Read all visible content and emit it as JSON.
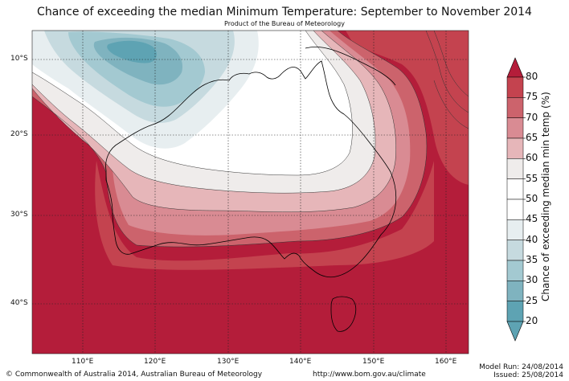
{
  "title": "Chance of exceeding the median Minimum Temperature: September to November 2014",
  "subtitle": "Product of the Bureau of Meteorology",
  "latitude_labels": [
    "10°S",
    "20°S",
    "30°S",
    "40°S"
  ],
  "longitude_labels": [
    "110°E",
    "120°E",
    "130°E",
    "140°E",
    "150°E",
    "160°E"
  ],
  "colorbar": {
    "title": "Chance of exceeding median min temp (%)",
    "ticks": [
      "80",
      "75",
      "70",
      "65",
      "60",
      "55",
      "50",
      "45",
      "40",
      "35",
      "30",
      "25",
      "20"
    ],
    "colors": [
      "#b41d3a",
      "#c4434f",
      "#cc636c",
      "#d98b93",
      "#e6b6b9",
      "#efeceb",
      "#ffffff",
      "#ffffff",
      "#e7eef0",
      "#c6dadf",
      "#a3c9d1",
      "#7fb3bf",
      "#5ea3b3"
    ]
  },
  "footer": {
    "copyright": "© Commonwealth of Australia 2014, Australian Bureau of Meteorology",
    "url": "http://www.bom.gov.au/climate",
    "model_run": "Model Run: 24/08/2014",
    "issued": "Issued: 25/08/2014"
  }
}
